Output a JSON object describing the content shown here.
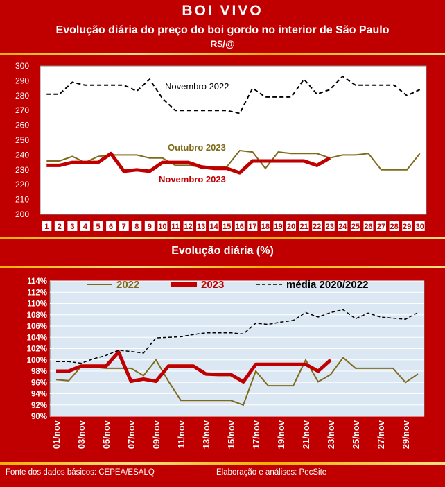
{
  "header": {
    "title": "BOI VIVO",
    "subtitle": "Evolução diária do preço do boi gordo no interior de São Paulo",
    "unit": "R$/@"
  },
  "chart2_title": "Evolução diária (%)",
  "footer": {
    "source": "Fonte dos dados básicos: CEPEA/ESALQ",
    "credit": "Elaboração e análises: PecSite"
  },
  "colors": {
    "background": "#c00000",
    "nov2022": "#000000",
    "out2023": "#7f6a1a",
    "nov2023": "#c00000",
    "plot2_bg": "#dbe8f4"
  },
  "chart_data": [
    {
      "type": "line",
      "x": [
        1,
        2,
        3,
        4,
        5,
        6,
        7,
        8,
        9,
        10,
        11,
        12,
        13,
        14,
        15,
        16,
        17,
        18,
        19,
        20,
        21,
        22,
        23,
        24,
        25,
        26,
        27,
        28,
        29,
        30
      ],
      "ylim": [
        200,
        300
      ],
      "yticks": [
        200,
        210,
        220,
        230,
        240,
        250,
        260,
        270,
        280,
        290,
        300
      ],
      "grid": false,
      "series": [
        {
          "name": "Novembro 2022",
          "style": "dashed",
          "values": [
            281,
            281,
            289,
            287,
            287,
            287,
            287,
            283,
            291,
            278,
            270,
            270,
            270,
            270,
            270,
            268,
            285,
            279,
            279,
            279,
            291,
            281,
            284,
            293,
            287,
            287,
            287,
            287,
            280,
            284
          ]
        },
        {
          "name": "Outubro 2023",
          "style": "solid",
          "values": [
            236,
            236,
            239,
            235,
            239,
            240,
            240,
            240,
            238,
            238,
            233,
            233,
            232,
            232,
            232,
            243,
            242,
            231,
            242,
            241,
            241,
            241,
            238,
            240,
            240,
            241,
            230,
            230,
            230,
            241
          ]
        },
        {
          "name": "Novembro 2023",
          "style": "thick",
          "values": [
            233,
            233,
            235,
            235,
            235,
            241,
            229,
            230,
            229,
            235,
            235,
            235,
            232,
            231,
            231,
            228,
            236,
            236,
            236,
            236,
            236,
            233,
            238,
            null,
            null,
            null,
            null,
            null,
            null,
            null
          ]
        }
      ]
    },
    {
      "type": "line",
      "categories": [
        "01/nov",
        "02/nov",
        "03/nov",
        "04/nov",
        "05/nov",
        "06/nov",
        "07/nov",
        "08/nov",
        "09/nov",
        "10/nov",
        "11/nov",
        "12/nov",
        "13/nov",
        "14/nov",
        "15/nov",
        "16/nov",
        "17/nov",
        "18/nov",
        "19/nov",
        "20/nov",
        "21/nov",
        "22/nov",
        "23/nov",
        "24/nov",
        "25/nov",
        "26/nov",
        "27/nov",
        "28/nov",
        "29/nov",
        "30/nov"
      ],
      "tick_labels": [
        "01/nov",
        "03/nov",
        "05/nov",
        "07/nov",
        "09/nov",
        "11/nov",
        "13/nov",
        "15/nov",
        "17/nov",
        "19/nov",
        "21/nov",
        "23/nov",
        "25/nov",
        "27/nov",
        "29/nov"
      ],
      "ylim": [
        90,
        114
      ],
      "yticks": [
        "90%",
        "92%",
        "94%",
        "96%",
        "98%",
        "100%",
        "102%",
        "104%",
        "106%",
        "108%",
        "110%",
        "112%",
        "114%"
      ],
      "grid": true,
      "legend": "top",
      "series": [
        {
          "name": "2022",
          "style": "solid",
          "values": [
            96.5,
            96.3,
            98.8,
            98.7,
            98.5,
            98.5,
            98.5,
            97.2,
            100.0,
            96.2,
            92.8,
            92.8,
            92.8,
            92.8,
            92.8,
            92.0,
            98.0,
            95.4,
            95.4,
            95.4,
            100.0,
            96.1,
            97.4,
            100.4,
            98.5,
            98.5,
            98.5,
            98.5,
            96.0,
            97.5
          ]
        },
        {
          "name": "2023",
          "style": "thick",
          "values": [
            98.0,
            98.0,
            98.9,
            98.9,
            98.9,
            101.4,
            96.2,
            96.6,
            96.2,
            98.9,
            98.9,
            98.9,
            97.5,
            97.4,
            97.4,
            96.1,
            99.2,
            99.2,
            99.2,
            99.2,
            99.2,
            98.0,
            100.0,
            null,
            null,
            null,
            null,
            null,
            null,
            null
          ]
        },
        {
          "name": "média 2020/2022",
          "style": "dashed",
          "values": [
            99.7,
            99.7,
            99.4,
            100.2,
            100.8,
            101.7,
            101.5,
            101.2,
            103.9,
            104.0,
            104.1,
            104.5,
            104.8,
            104.8,
            104.8,
            104.6,
            106.5,
            106.3,
            106.7,
            107.0,
            108.4,
            107.6,
            108.4,
            108.9,
            107.3,
            108.3,
            107.6,
            107.4,
            107.2,
            108.4
          ]
        }
      ]
    }
  ]
}
